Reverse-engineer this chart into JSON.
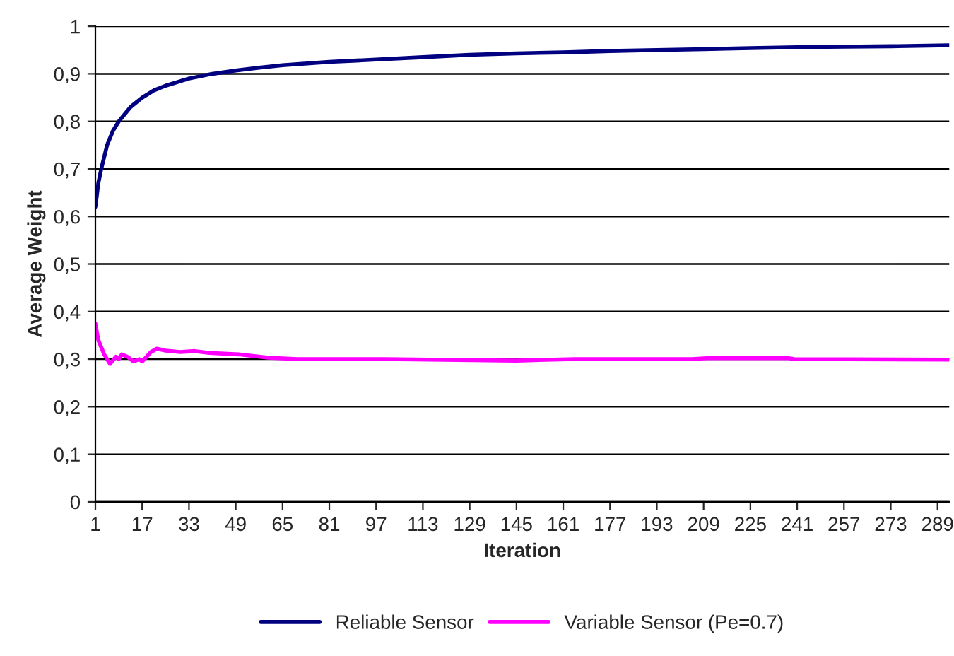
{
  "chart_data": {
    "type": "line",
    "xlabel": "Iteration",
    "ylabel": "Average Weight",
    "series": [
      {
        "name": "Reliable Sensor",
        "color": "#000080",
        "x": [
          1,
          2,
          3,
          5,
          7,
          9,
          13,
          17,
          21,
          25,
          33,
          41,
          49,
          57,
          65,
          81,
          97,
          113,
          129,
          145,
          161,
          177,
          193,
          209,
          225,
          241,
          257,
          273,
          293
        ],
        "values": [
          0.62,
          0.67,
          0.7,
          0.75,
          0.78,
          0.8,
          0.83,
          0.85,
          0.865,
          0.875,
          0.89,
          0.9,
          0.907,
          0.913,
          0.918,
          0.925,
          0.93,
          0.935,
          0.94,
          0.943,
          0.945,
          0.948,
          0.95,
          0.952,
          0.954,
          0.956,
          0.957,
          0.958,
          0.96
        ]
      },
      {
        "name": "Variable Sensor (Pe=0.7)",
        "color": "#ff00ff",
        "x": [
          1,
          2,
          4,
          6,
          8,
          9,
          10,
          12,
          14,
          16,
          17,
          20,
          22,
          25,
          30,
          35,
          40,
          50,
          60,
          70,
          80,
          100,
          130,
          145,
          165,
          205,
          210,
          238,
          240,
          293
        ],
        "values": [
          0.375,
          0.34,
          0.31,
          0.29,
          0.305,
          0.3,
          0.31,
          0.305,
          0.295,
          0.3,
          0.295,
          0.315,
          0.322,
          0.318,
          0.315,
          0.317,
          0.313,
          0.31,
          0.303,
          0.3,
          0.3,
          0.3,
          0.298,
          0.297,
          0.3,
          0.3,
          0.302,
          0.302,
          0.3,
          0.299
        ]
      }
    ],
    "xlim": [
      1,
      293
    ],
    "xticks": [
      1,
      17,
      33,
      49,
      65,
      81,
      97,
      113,
      129,
      145,
      161,
      177,
      193,
      209,
      225,
      241,
      257,
      273,
      289
    ],
    "ylim": [
      0,
      1
    ],
    "yticks": [
      0,
      {
        "value": 0.1,
        "label": "0,1"
      },
      {
        "value": 0.2,
        "label": "0,2"
      },
      {
        "value": 0.3,
        "label": "0,3"
      },
      {
        "value": 0.4,
        "label": "0,4"
      },
      {
        "value": 0.5,
        "label": "0,5"
      },
      {
        "value": 0.6,
        "label": "0,6"
      },
      {
        "value": 0.7,
        "label": "0,7"
      },
      {
        "value": 0.8,
        "label": "0,8"
      },
      {
        "value": 0.9,
        "label": "0,9"
      },
      1
    ],
    "grid": "y",
    "legend": "bottom"
  }
}
